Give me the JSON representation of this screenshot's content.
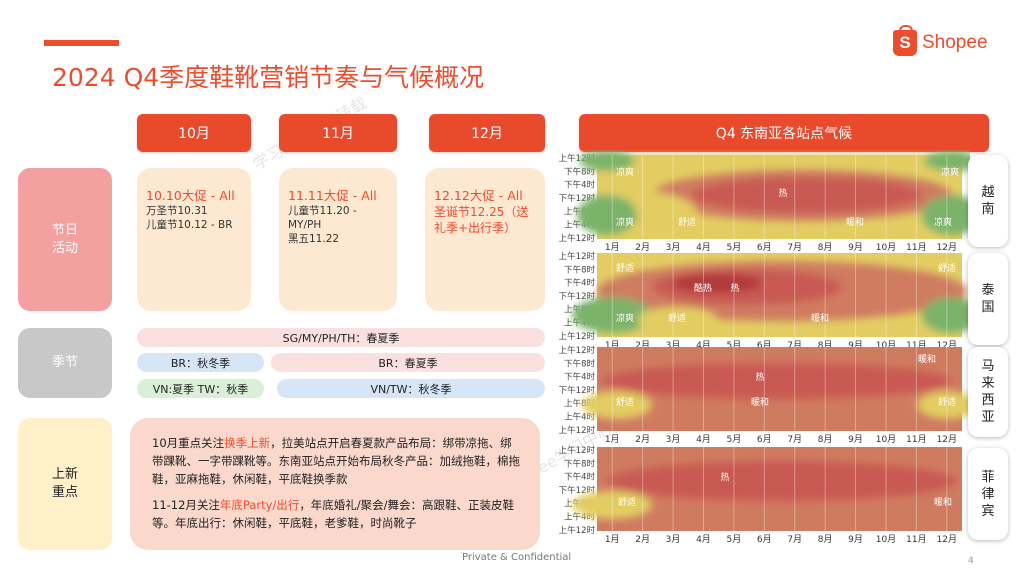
{
  "title": "2024 Q4季度鞋靴营销节奏与气候概况",
  "logo": {
    "glyph": "S",
    "text": "Shopee"
  },
  "months": [
    "10月",
    "11月",
    "12月"
  ],
  "climate_header": "Q4 东南亚各站点气候",
  "row_labels": {
    "festival": [
      "节日",
      "活动"
    ],
    "season": "季节",
    "focus": [
      "上新",
      "重点"
    ]
  },
  "events": [
    {
      "title": "10.10大促 - All",
      "lines": [
        "万圣节10.31",
        "儿童节10.12 - BR"
      ]
    },
    {
      "title": "11.11大促 - All",
      "lines": [
        "儿童节11.20 -MY/PH",
        "黑五11.22"
      ]
    },
    {
      "title": "12.12大促 - All",
      "lines2": [
        "圣诞节12.25（送",
        "礼季+出行季）"
      ]
    }
  ],
  "seasons": {
    "all": "SG/MY/PH/TH：春夏季",
    "br_autumn": "BR：秋冬季",
    "br_spring": "BR：春夏季",
    "vn_tw": "VN:夏季 TW：秋季",
    "vn_tw_winter": "VN/TW：秋冬季"
  },
  "focus": {
    "p1_a": "10月重点关注",
    "p1_hl": "换季上新",
    "p1_b": "，拉美站点开启春夏款产品布局：绑带凉拖、绑带踝靴、一字带踝靴等。东南亚站点开始布局秋冬产品：加绒拖鞋，棉拖鞋，亚麻拖鞋，休闲鞋，平底鞋换季款",
    "p2_a": "11-12月关注",
    "p2_hl": "年底Party/出行",
    "p2_b": "，年底婚礼/聚会/舞会：高跟鞋、正装皮鞋等。年底出行：休闲鞋，平底鞋，老爹鞋，时尚靴子"
  },
  "climate": {
    "time_labels": [
      "上午12时",
      "下午8时",
      "下午4时",
      "下午12时",
      "上午8时",
      "上午4时",
      "上午12时"
    ],
    "month_labels": [
      "1月",
      "2月",
      "3月",
      "4月",
      "5月",
      "6月",
      "7月",
      "8月",
      "9月",
      "10月",
      "11月",
      "12月"
    ],
    "labels": {
      "cool": "凉爽",
      "comfortable": "舒适",
      "hot": "热",
      "sweltering": "酷热",
      "warm": "暖和"
    },
    "countries": [
      {
        "name": [
          "越",
          "南"
        ]
      },
      {
        "name": [
          "泰",
          "国"
        ]
      },
      {
        "name": [
          "马",
          "来",
          "西",
          "亚"
        ]
      },
      {
        "name": [
          "菲",
          "律",
          "宾"
        ]
      }
    ],
    "colors": {
      "cool": "#7bb36a",
      "comfortable": "#e3cd62",
      "warm": "#cf7b60",
      "hot": "#c95a52",
      "sweltering": "#b23a3a"
    }
  },
  "footer": "Private & Confidential",
  "page_number": "4",
  "watermarks": [
    "学习中心严禁转载",
    "Shopee学习中心"
  ]
}
